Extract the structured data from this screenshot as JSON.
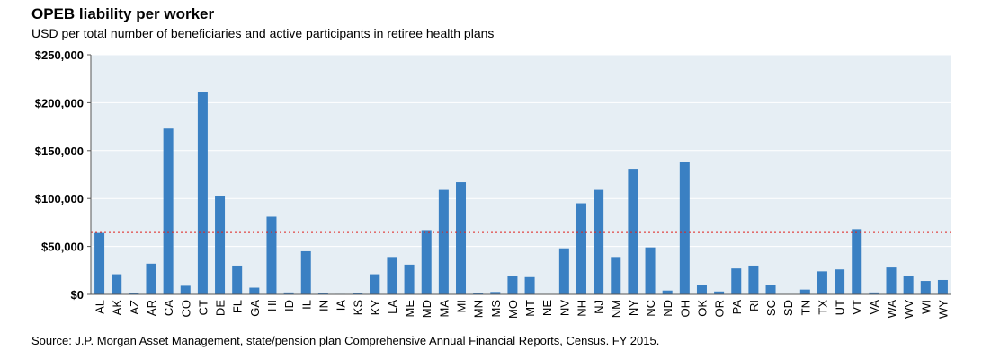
{
  "colors": {
    "background": "#ffffff",
    "plot_background": "#e6eef4",
    "bar": "#3a80c3",
    "reference_line": "#e0201b"
  },
  "chart_data": {
    "type": "bar",
    "title": "OPEB liability per worker",
    "subtitle": "USD per total number of beneficiaries and active participants in retiree health plans",
    "source": "Source: J.P. Morgan Asset Management, state/pension plan Comprehensive Annual Financial Reports, Census.  FY 2015.",
    "xlabel": "",
    "ylabel": "",
    "ylim": [
      0,
      250000
    ],
    "y_ticks": [
      0,
      50000,
      100000,
      150000,
      200000,
      250000
    ],
    "y_tick_labels": [
      "$0",
      "$50,000",
      "$100,000",
      "$150,000",
      "$200,000",
      "$250,000"
    ],
    "grid": true,
    "reference_line": {
      "value": 65000,
      "style": "dotted"
    },
    "categories": [
      "AL",
      "AK",
      "AZ",
      "AR",
      "CA",
      "CO",
      "CT",
      "DE",
      "FL",
      "GA",
      "HI",
      "ID",
      "IL",
      "IN",
      "IA",
      "KS",
      "KY",
      "LA",
      "ME",
      "MD",
      "MA",
      "MI",
      "MN",
      "MS",
      "MO",
      "MT",
      "NE",
      "NV",
      "NH",
      "NJ",
      "NM",
      "NY",
      "NC",
      "ND",
      "OH",
      "OK",
      "OR",
      "PA",
      "RI",
      "SC",
      "SD",
      "TN",
      "TX",
      "UT",
      "VT",
      "VA",
      "WA",
      "WV",
      "WI",
      "WY"
    ],
    "values": [
      64000,
      21000,
      1000,
      32000,
      173000,
      9000,
      211000,
      103000,
      30000,
      7000,
      81000,
      2000,
      45000,
      1000,
      500,
      1500,
      21000,
      39000,
      31000,
      67000,
      109000,
      117000,
      1500,
      2500,
      19000,
      18000,
      0,
      48000,
      95000,
      109000,
      39000,
      131000,
      49000,
      4000,
      138000,
      10000,
      3000,
      27000,
      30000,
      10000,
      0,
      5000,
      24000,
      26000,
      68000,
      2000,
      28000,
      19000,
      14000,
      15000
    ]
  }
}
